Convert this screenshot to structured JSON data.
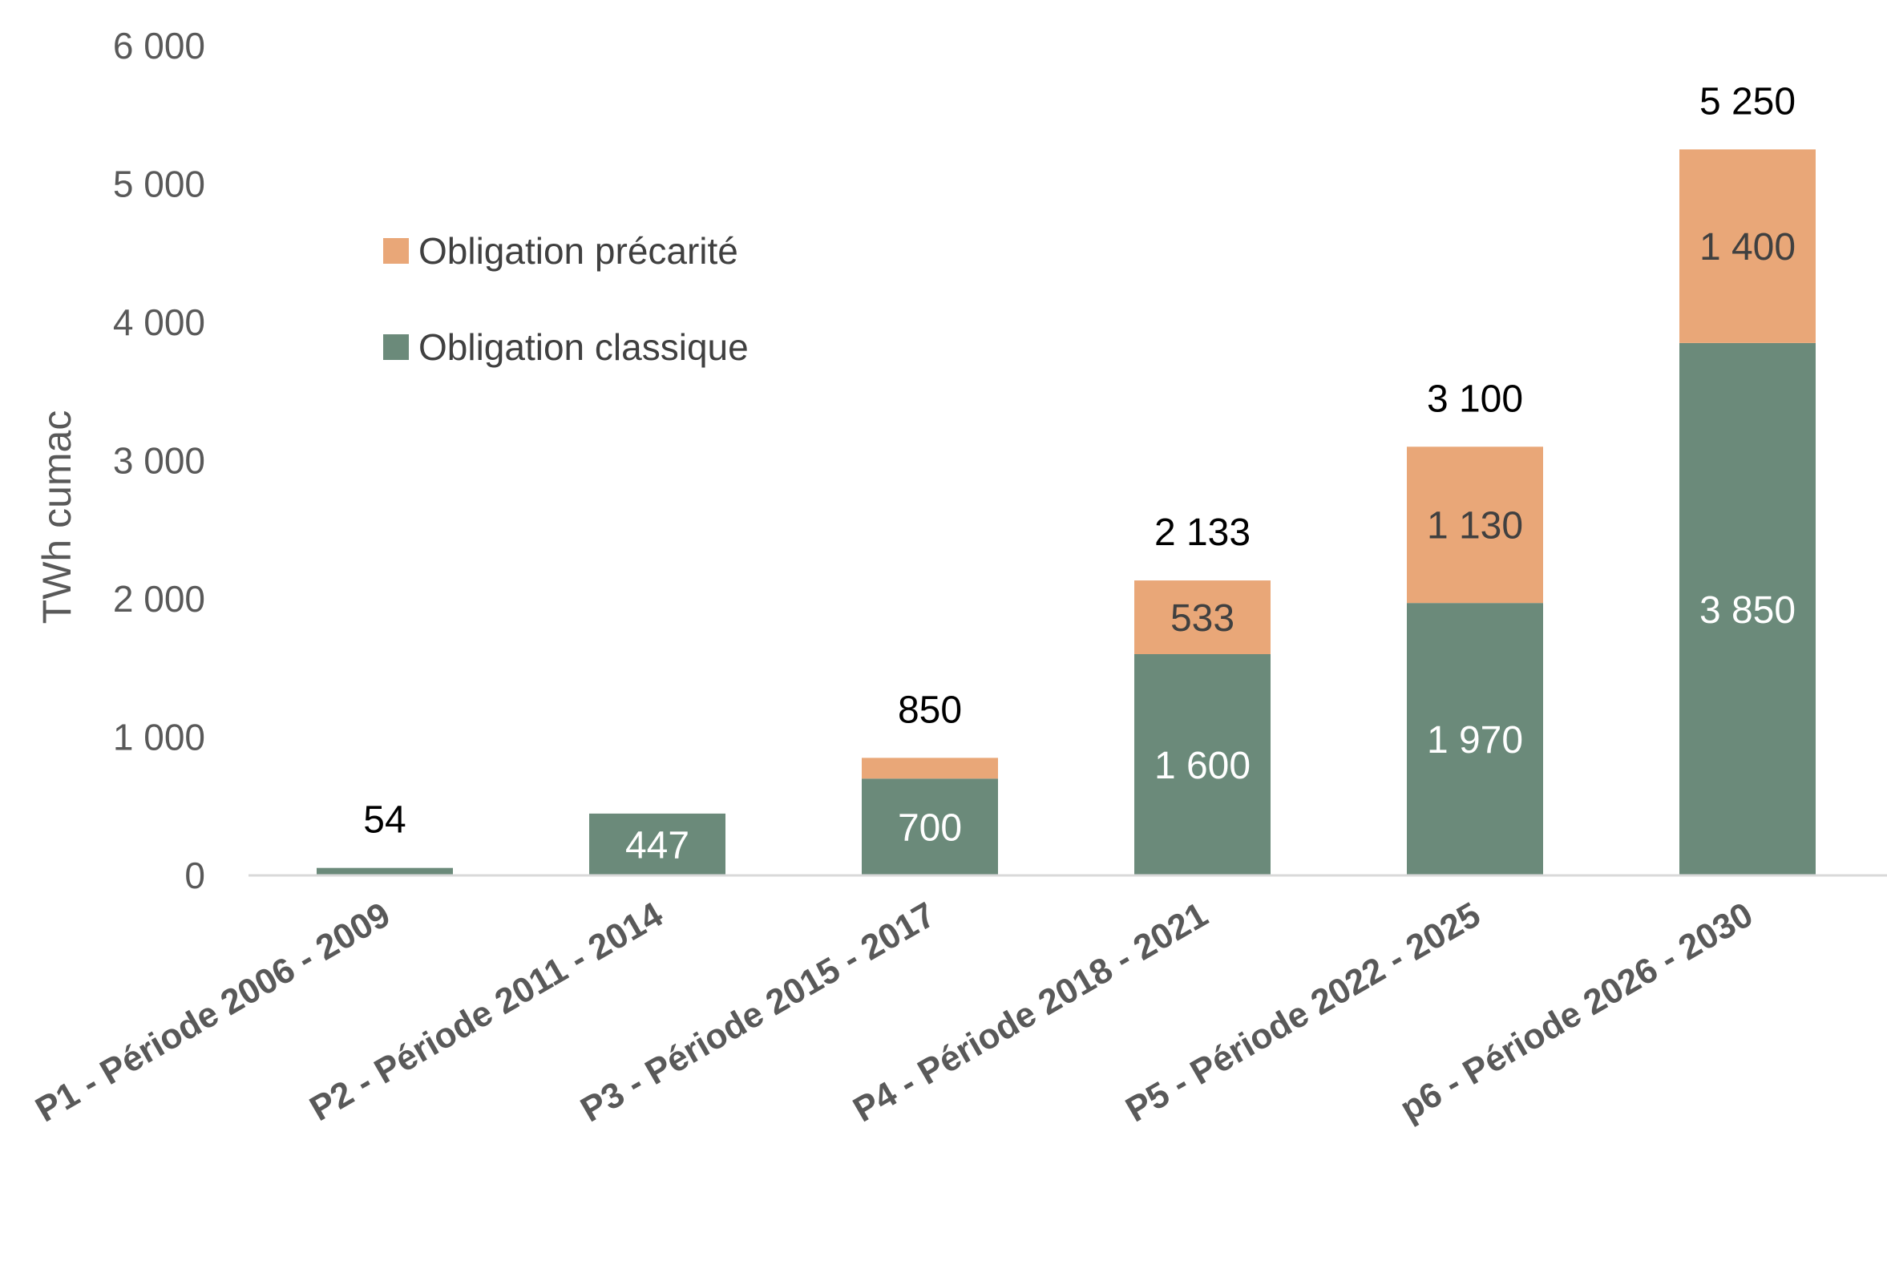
{
  "chart_data": {
    "type": "bar",
    "stacked": true,
    "ylabel": "TWh cumac",
    "xlabel": "",
    "ylim": [
      0,
      6000
    ],
    "y_ticks": [
      "0",
      "1 000",
      "2 000",
      "3 000",
      "4 000",
      "5 000",
      "6 000"
    ],
    "grid": false,
    "legend_position": "top-left",
    "categories": [
      "P1 - Période 2006 - 2009",
      "P2 - Période 2011 - 2014",
      "P3 - Période 2015 - 2017",
      "P4 - Période 2018 - 2021",
      "P5 - Période 2022 - 2025",
      "p6 - Période 2026 - 2030"
    ],
    "series": [
      {
        "name": "Obligation classique",
        "color": "#6b8a7a",
        "label_color": "#ffffff",
        "values": [
          54,
          447,
          700,
          1600,
          1970,
          3850
        ],
        "labels": [
          "",
          "447",
          "700",
          "1 600",
          "1 970",
          "3 850"
        ]
      },
      {
        "name": "Obligation précarité",
        "color": "#e9a778",
        "label_color": "#404040",
        "values": [
          0,
          0,
          150,
          533,
          1130,
          1400
        ],
        "labels": [
          "",
          "",
          "",
          "533",
          "1 130",
          "1 400"
        ]
      }
    ],
    "totals": [
      "54",
      "",
      "850",
      "2 133",
      "3 100",
      "5 250"
    ],
    "total_values": [
      54,
      447,
      850,
      2133,
      3100,
      5250
    ],
    "legend_order": [
      1,
      0
    ]
  }
}
